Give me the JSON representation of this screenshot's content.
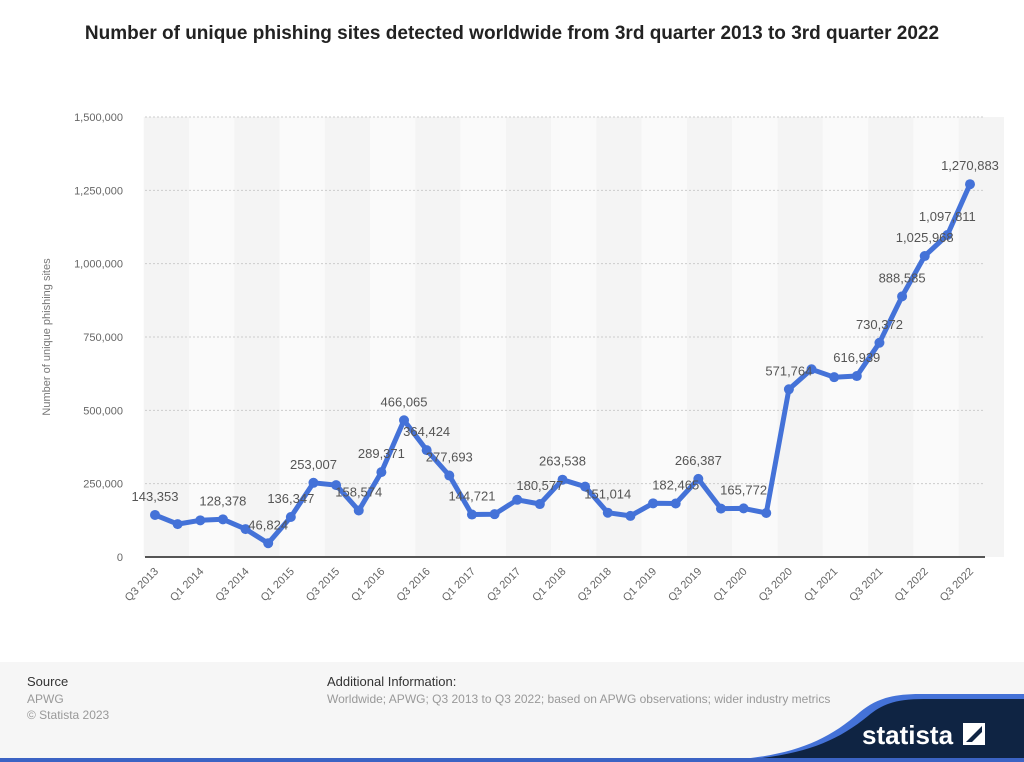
{
  "title": "Number of unique phishing sites detected worldwide from 3rd quarter 2013 to 3rd quarter 2022",
  "footer": {
    "source_heading": "Source",
    "source": "APWG",
    "copyright": "© Statista 2023",
    "additional_heading": "Additional Information:",
    "additional": "Worldwide; APWG; Q3 2013 to Q3 2022; based on APWG observations; wider industry metrics",
    "logo": "statista"
  },
  "chart_data": {
    "type": "line",
    "title": "Number of unique phishing sites detected worldwide from 3rd quarter 2013 to 3rd quarter 2022",
    "xlabel": "",
    "ylabel": "Number of unique phishing sites",
    "ylim": [
      0,
      1500000
    ],
    "yticks": [
      0,
      250000,
      500000,
      750000,
      1000000,
      1250000,
      1500000
    ],
    "ytick_labels": [
      "0",
      "250,000",
      "500,000",
      "750,000",
      "1,000,000",
      "1,250,000",
      "1,500,000"
    ],
    "grid": true,
    "color": "#4472d8",
    "x": [
      "Q3 2013",
      "Q4 2013",
      "Q1 2014",
      "Q2 2014",
      "Q3 2014",
      "Q4 2014",
      "Q1 2015",
      "Q2 2015",
      "Q3 2015",
      "Q4 2015",
      "Q1 2016",
      "Q2 2016",
      "Q3 2016",
      "Q4 2016",
      "Q1 2017",
      "Q2 2017",
      "Q3 2017",
      "Q4 2017",
      "Q1 2018",
      "Q2 2018",
      "Q3 2018",
      "Q4 2018",
      "Q1 2019",
      "Q2 2019",
      "Q3 2019",
      "Q4 2019",
      "Q1 2020",
      "Q2 2020",
      "Q3 2020",
      "Q4 2020",
      "Q1 2021",
      "Q2 2021",
      "Q3 2021",
      "Q4 2021",
      "Q1 2022",
      "Q2 2022",
      "Q3 2022"
    ],
    "xtick_labels": [
      "Q3 2013",
      "Q1 2014",
      "Q3 2014",
      "Q1 2015",
      "Q3 2015",
      "Q1 2016",
      "Q3 2016",
      "Q1 2017",
      "Q3 2017",
      "Q1 2018",
      "Q3 2018",
      "Q1 2019",
      "Q3 2019",
      "Q1 2020",
      "Q3 2020",
      "Q1 2021",
      "Q3 2021",
      "Q1 2022",
      "Q3 2022"
    ],
    "values": [
      143353,
      112000,
      125000,
      128378,
      95000,
      46824,
      136347,
      253007,
      245000,
      158574,
      289371,
      466065,
      364424,
      277693,
      144721,
      146000,
      195000,
      180577,
      263538,
      240000,
      151014,
      140000,
      183000,
      182465,
      266387,
      165000,
      165772,
      150000,
      571764,
      640000,
      613000,
      616939,
      730372,
      888585,
      1025968,
      1097811,
      1270883
    ],
    "data_labels": [
      "143,353",
      null,
      null,
      "128,378",
      null,
      "46,824",
      "136,347",
      "253,007",
      null,
      "158,574",
      "289,371",
      "466,065",
      "364,424",
      "277,693",
      "144,721",
      null,
      null,
      "180,577",
      "263,538",
      null,
      "151,014",
      null,
      null,
      "182,465",
      "266,387",
      null,
      "165,772",
      null,
      "571,764",
      null,
      null,
      "616,939",
      "730,372",
      "888,585",
      "1,025,968",
      "1,097,811",
      "1,270,883"
    ]
  }
}
